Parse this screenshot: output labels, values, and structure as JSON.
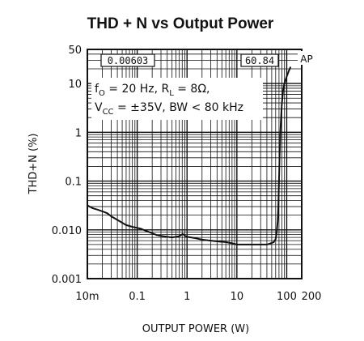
{
  "chart_data": {
    "type": "line",
    "title": "THD + N vs Output Power",
    "xlabel": "OUTPUT POWER (W)",
    "ylabel": "THD+N (%)",
    "x_scale": "log",
    "y_scale": "log",
    "xlim": [
      0.01,
      200
    ],
    "ylim": [
      0.001,
      50
    ],
    "x_tick_labels": [
      {
        "value": 0.01,
        "label": "10m"
      },
      {
        "value": 0.1,
        "label": "0.1"
      },
      {
        "value": 1,
        "label": "1"
      },
      {
        "value": 10,
        "label": "10"
      },
      {
        "value": 100,
        "label": "100"
      },
      {
        "value": 200,
        "label": "200"
      }
    ],
    "y_tick_labels": [
      {
        "value": 50,
        "label": "50"
      },
      {
        "value": 10,
        "label": "10"
      },
      {
        "value": 1,
        "label": "1"
      },
      {
        "value": 0.1,
        "label": "0.1"
      },
      {
        "value": 0.01,
        "label": "0.010"
      },
      {
        "value": 0.001,
        "label": "0.001"
      }
    ],
    "grid": true,
    "conditions": {
      "line1": "f  = 20 Hz, R  = 8Ω,",
      "line1_sub_f": "O",
      "line1_sub_r": "L",
      "line2": "V   = ±35V, BW < 80 kHz",
      "line2_sub_v": "CC"
    },
    "annotations": {
      "left_box": "0.00603",
      "right_box": "60.84",
      "ap_mark": "AP"
    },
    "colors": {
      "grid": "#111111",
      "curve": "#111111",
      "background": "#ffffff"
    },
    "series": [
      {
        "x": [
          0.01,
          0.0105,
          0.011,
          0.0115,
          0.0125,
          0.014,
          0.016,
          0.02,
          0.025,
          0.03,
          0.04,
          0.05,
          0.06,
          0.07,
          0.08,
          0.1,
          0.12,
          0.15,
          0.2,
          0.25,
          0.3,
          0.4,
          0.5,
          0.6,
          0.7,
          0.78,
          0.82,
          0.86,
          0.9,
          1.0,
          1.2,
          1.5,
          2,
          3,
          4,
          5,
          6,
          8,
          10,
          12,
          15,
          20,
          25,
          30,
          40,
          45,
          50,
          55,
          60,
          63,
          66,
          68,
          70,
          72,
          75,
          80,
          85,
          90,
          95,
          100,
          105,
          110,
          120
        ],
        "y": [
          0.032,
          0.031,
          0.03,
          0.0295,
          0.028,
          0.027,
          0.026,
          0.024,
          0.022,
          0.019,
          0.016,
          0.014,
          0.0125,
          0.012,
          0.0115,
          0.011,
          0.0105,
          0.0095,
          0.0085,
          0.0078,
          0.0075,
          0.0072,
          0.007,
          0.0072,
          0.0074,
          0.008,
          0.0082,
          0.008,
          0.0076,
          0.0072,
          0.007,
          0.0067,
          0.0063,
          0.006,
          0.0058,
          0.0057,
          0.0056,
          0.0053,
          0.005,
          0.005,
          0.005,
          0.005,
          0.005,
          0.005,
          0.005,
          0.0052,
          0.0054,
          0.0056,
          0.0065,
          0.009,
          0.015,
          0.03,
          0.1,
          0.35,
          1.2,
          4,
          7.5,
          10,
          12,
          14,
          16,
          18,
          22
        ]
      }
    ]
  }
}
